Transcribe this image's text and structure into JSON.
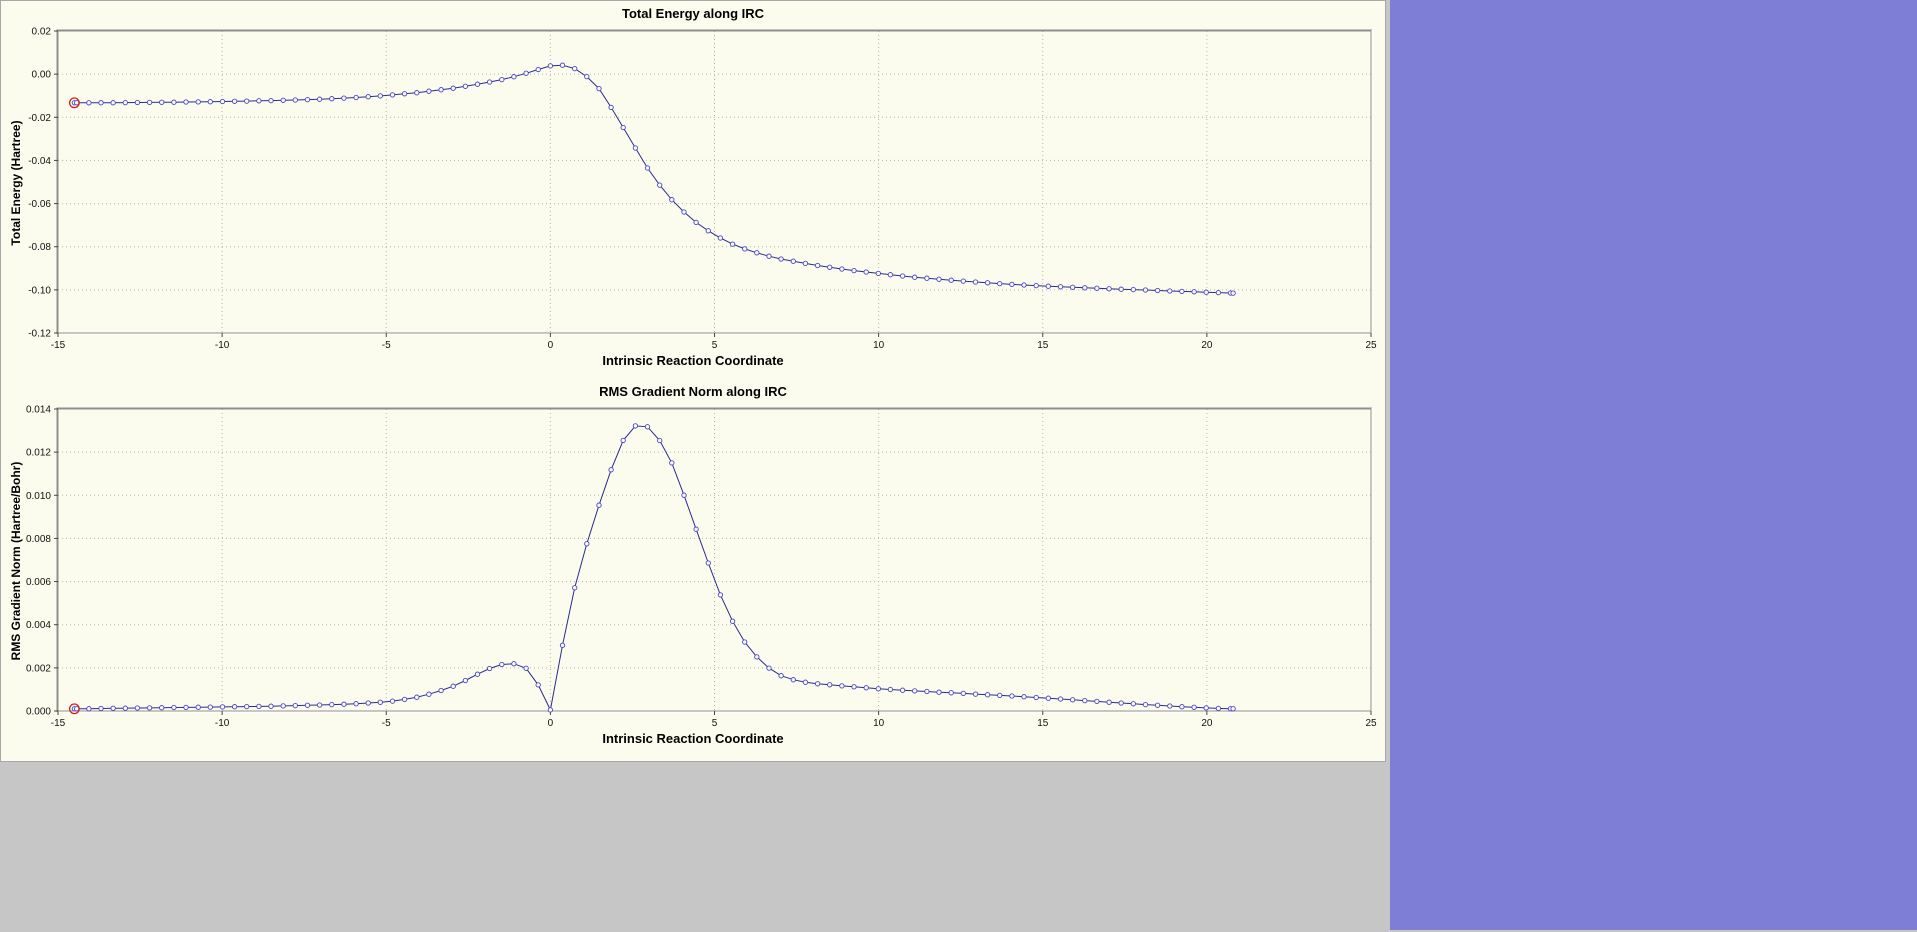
{
  "window": {
    "background": "#fcfcee",
    "frame_color": "#c6c6c6",
    "side_panel_color": "#7e7ed6",
    "grid_color": "#b4b4aa",
    "border_dark": "#8c8c8c",
    "border_light": "#ffffff"
  },
  "chart_data": [
    {
      "type": "line",
      "title": "Total Energy along IRC",
      "xlabel": "Intrinsic Reaction Coordinate",
      "ylabel": "Total Energy (Hartree)",
      "xlim": [
        -15,
        25
      ],
      "ylim": [
        -0.12,
        0.02
      ],
      "x_ticks": [
        -15,
        -10,
        -5,
        0,
        5,
        10,
        15,
        20,
        25
      ],
      "y_ticks": [
        0.02,
        0.0,
        -0.02,
        -0.04,
        -0.06,
        -0.08,
        -0.1,
        -0.12
      ],
      "y_decimals": 2,
      "grid": "dotted",
      "legend": "none",
      "marker": "circle",
      "line_color": "#2a2a8f",
      "marker_stroke": "#4646cc",
      "marker_fill": "#fcfcee",
      "highlight_first_point": true,
      "highlight_color": "#d02020",
      "point_step": 0.37,
      "x_start": -14.5,
      "x_end": 20.8,
      "anchors": {
        "x": [
          -14.5,
          -13,
          -12,
          -11,
          -10,
          -9,
          -8,
          -7,
          -6,
          -5,
          -4,
          -3,
          -2.5,
          -2,
          -1.5,
          -1,
          -0.5,
          -0.2,
          0,
          0.2,
          0.5,
          0.8,
          1,
          1.5,
          2,
          2.5,
          3,
          3.5,
          4,
          4.5,
          5,
          5.5,
          6,
          6.5,
          7,
          8,
          9,
          10,
          11,
          12,
          13,
          14,
          15,
          16,
          17,
          18,
          19,
          20,
          20.8
        ],
        "y": [
          -0.0133,
          -0.0132,
          -0.0131,
          -0.0129,
          -0.0127,
          -0.0124,
          -0.0121,
          -0.0116,
          -0.0109,
          -0.0099,
          -0.0085,
          -0.0066,
          -0.0054,
          -0.0041,
          -0.0026,
          -0.0008,
          0.0015,
          0.003,
          0.0038,
          0.0043,
          0.004,
          0.0022,
          0.0005,
          -0.007,
          -0.019,
          -0.032,
          -0.0445,
          -0.055,
          -0.063,
          -0.0695,
          -0.0745,
          -0.0785,
          -0.0815,
          -0.0838,
          -0.0856,
          -0.0884,
          -0.0906,
          -0.0924,
          -0.094,
          -0.0953,
          -0.0964,
          -0.0974,
          -0.0982,
          -0.0989,
          -0.0995,
          -0.1,
          -0.1006,
          -0.1011,
          -0.1015
        ]
      }
    },
    {
      "type": "line",
      "title": "RMS Gradient Norm along IRC",
      "xlabel": "Intrinsic Reaction Coordinate",
      "ylabel": "RMS Gradient Norm (Hartree/Bohr)",
      "xlim": [
        -15,
        25
      ],
      "ylim": [
        0.0,
        0.014
      ],
      "x_ticks": [
        -15,
        -10,
        -5,
        0,
        5,
        10,
        15,
        20,
        25
      ],
      "y_ticks": [
        0.014,
        0.012,
        0.01,
        0.008,
        0.006,
        0.004,
        0.002,
        0.0
      ],
      "y_decimals": 3,
      "grid": "dotted",
      "legend": "none",
      "marker": "circle",
      "line_color": "#2a2a8f",
      "marker_stroke": "#4646cc",
      "marker_fill": "#fcfcee",
      "highlight_first_point": true,
      "highlight_color": "#d02020",
      "point_step": 0.37,
      "x_start": -14.5,
      "x_end": 20.8,
      "anchors": {
        "x": [
          -14.5,
          -13,
          -12,
          -11,
          -10,
          -9,
          -8,
          -7,
          -6,
          -5,
          -4.5,
          -4,
          -3.5,
          -3,
          -2.5,
          -2,
          -1.6,
          -1.3,
          -1,
          -0.7,
          -0.5,
          -0.3,
          -0.15,
          0,
          0.2,
          0.4,
          0.6,
          0.8,
          1,
          1.3,
          1.6,
          1.9,
          2.2,
          2.5,
          2.7,
          2.9,
          3.1,
          3.4,
          3.7,
          4,
          4.4,
          4.8,
          5.2,
          5.6,
          6,
          6.5,
          7,
          7.5,
          8,
          9,
          10,
          11,
          12,
          13,
          14,
          15,
          16,
          17,
          18,
          19,
          20,
          20.8
        ],
        "y": [
          0.0001,
          0.00013,
          0.00015,
          0.00017,
          0.00019,
          0.00021,
          0.00024,
          0.00028,
          0.00033,
          0.00042,
          0.00052,
          0.00066,
          0.00086,
          0.00112,
          0.00148,
          0.00188,
          0.00212,
          0.00221,
          0.00218,
          0.00195,
          0.0016,
          0.001,
          0.00045,
          5e-05,
          0.0016,
          0.0033,
          0.0048,
          0.0061,
          0.0072,
          0.0087,
          0.0101,
          0.0114,
          0.0125,
          0.01315,
          0.0133,
          0.01325,
          0.013,
          0.0124,
          0.0115,
          0.0103,
          0.0086,
          0.0069,
          0.0053,
          0.004,
          0.003,
          0.00215,
          0.00165,
          0.0014,
          0.00128,
          0.00115,
          0.00103,
          0.00094,
          0.00086,
          0.00078,
          0.0007,
          0.00061,
          0.00051,
          0.00041,
          0.00031,
          0.00022,
          0.00014,
          0.0001
        ]
      }
    }
  ]
}
